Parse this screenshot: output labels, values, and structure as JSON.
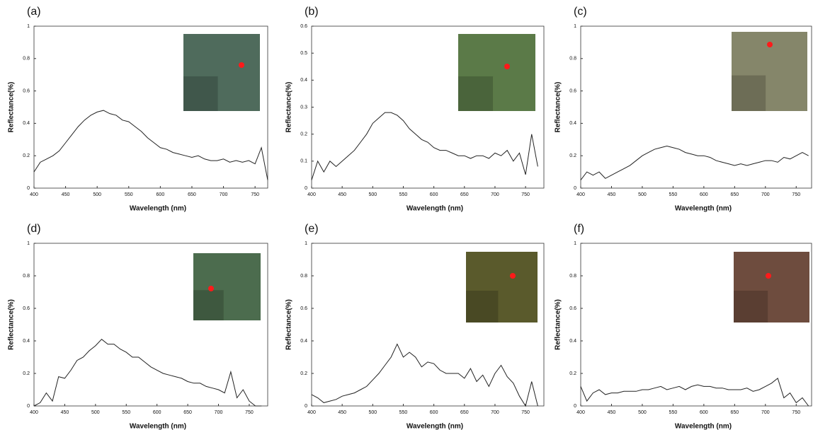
{
  "chart_data": [
    {
      "type": "line",
      "label": "(a)",
      "x_label": "Wavelength (nm)",
      "y_label": "Reflectance(%)",
      "x": [
        400,
        410,
        420,
        430,
        440,
        450,
        460,
        470,
        480,
        490,
        500,
        510,
        520,
        530,
        540,
        550,
        560,
        570,
        580,
        590,
        600,
        610,
        620,
        630,
        640,
        650,
        660,
        670,
        680,
        690,
        700,
        710,
        720,
        730,
        740,
        750,
        760,
        770
      ],
      "series": [
        {
          "color": "#222222",
          "values": [
            0.1,
            0.16,
            0.18,
            0.2,
            0.23,
            0.28,
            0.33,
            0.38,
            0.42,
            0.45,
            0.47,
            0.48,
            0.46,
            0.45,
            0.42,
            0.41,
            0.38,
            0.35,
            0.31,
            0.28,
            0.25,
            0.24,
            0.22,
            0.21,
            0.2,
            0.19,
            0.2,
            0.18,
            0.17,
            0.17,
            0.18,
            0.16,
            0.17,
            0.16,
            0.17,
            0.15,
            0.25,
            0.05
          ]
        }
      ],
      "xlim": [
        400,
        770
      ],
      "ylim": [
        0,
        1
      ],
      "xticks": [
        400,
        450,
        500,
        550,
        600,
        650,
        700,
        750
      ],
      "yticks": [
        0,
        0.2,
        0.4,
        0.6,
        0.8,
        1
      ]
    },
    {
      "type": "line",
      "label": "(b)",
      "x_label": "Wavelength (nm)",
      "y_label": "Reflectance(%)",
      "x": [
        400,
        410,
        420,
        430,
        440,
        450,
        460,
        470,
        480,
        490,
        500,
        510,
        520,
        530,
        540,
        550,
        560,
        570,
        580,
        590,
        600,
        610,
        620,
        630,
        640,
        650,
        660,
        670,
        680,
        690,
        700,
        710,
        720,
        730,
        740,
        750,
        760,
        770
      ],
      "series": [
        {
          "color": "#222222",
          "values": [
            0.03,
            0.1,
            0.06,
            0.1,
            0.08,
            0.1,
            0.12,
            0.14,
            0.17,
            0.2,
            0.24,
            0.26,
            0.28,
            0.28,
            0.27,
            0.25,
            0.22,
            0.2,
            0.18,
            0.17,
            0.15,
            0.14,
            0.14,
            0.13,
            0.12,
            0.12,
            0.11,
            0.12,
            0.12,
            0.11,
            0.13,
            0.12,
            0.14,
            0.1,
            0.13,
            0.05,
            0.2,
            0.08
          ]
        }
      ],
      "xlim": [
        400,
        780
      ],
      "ylim": [
        0,
        0.6
      ],
      "xticks": [
        400,
        450,
        500,
        550,
        600,
        650,
        700,
        750
      ],
      "yticks": [
        0,
        0.1,
        0.2,
        0.3,
        0.4,
        0.5,
        0.6
      ]
    },
    {
      "type": "line",
      "label": "(c)",
      "x_label": "Wavelength (nm)",
      "y_label": "Reflectance(%)",
      "x": [
        400,
        410,
        420,
        430,
        440,
        450,
        460,
        470,
        480,
        490,
        500,
        510,
        520,
        530,
        540,
        550,
        560,
        570,
        580,
        590,
        600,
        610,
        620,
        630,
        640,
        650,
        660,
        670,
        680,
        690,
        700,
        710,
        720,
        730,
        740,
        750,
        760,
        770
      ],
      "series": [
        {
          "color": "#222222",
          "values": [
            0.05,
            0.1,
            0.08,
            0.1,
            0.06,
            0.08,
            0.1,
            0.12,
            0.14,
            0.17,
            0.2,
            0.22,
            0.24,
            0.25,
            0.26,
            0.25,
            0.24,
            0.22,
            0.21,
            0.2,
            0.2,
            0.19,
            0.17,
            0.16,
            0.15,
            0.14,
            0.15,
            0.14,
            0.15,
            0.16,
            0.17,
            0.17,
            0.16,
            0.19,
            0.18,
            0.2,
            0.22,
            0.2
          ]
        }
      ],
      "xlim": [
        400,
        775
      ],
      "ylim": [
        0,
        1
      ],
      "xticks": [
        400,
        450,
        500,
        550,
        600,
        650,
        700,
        750
      ],
      "yticks": [
        0,
        0.2,
        0.4,
        0.6,
        0.8,
        1
      ]
    },
    {
      "type": "line",
      "label": "(d)",
      "x_label": "Wavelength (nm)",
      "y_label": "Reflectance(%)",
      "x": [
        400,
        410,
        420,
        430,
        440,
        450,
        460,
        470,
        480,
        490,
        500,
        510,
        520,
        530,
        540,
        550,
        560,
        570,
        580,
        590,
        600,
        610,
        620,
        630,
        640,
        650,
        660,
        670,
        680,
        690,
        700,
        710,
        720,
        730,
        740,
        750,
        760,
        770
      ],
      "series": [
        {
          "color": "#222222",
          "values": [
            0,
            0.02,
            0.08,
            0.03,
            0.18,
            0.17,
            0.22,
            0.28,
            0.3,
            0.34,
            0.37,
            0.41,
            0.38,
            0.38,
            0.35,
            0.33,
            0.3,
            0.3,
            0.27,
            0.24,
            0.22,
            0.2,
            0.19,
            0.18,
            0.17,
            0.15,
            0.14,
            0.14,
            0.12,
            0.11,
            0.1,
            0.08,
            0.21,
            0.05,
            0.1,
            0.03,
            0,
            0
          ]
        }
      ],
      "xlim": [
        400,
        780
      ],
      "ylim": [
        0,
        1
      ],
      "xticks": [
        400,
        450,
        500,
        550,
        600,
        650,
        700,
        750
      ],
      "yticks": [
        0,
        0.2,
        0.4,
        0.6,
        0.8,
        1
      ]
    },
    {
      "type": "line",
      "label": "(e)",
      "x_label": "Wavelength (nm)",
      "y_label": "Reflectance(%)",
      "x": [
        400,
        410,
        420,
        430,
        440,
        450,
        460,
        470,
        480,
        490,
        500,
        510,
        520,
        530,
        540,
        550,
        560,
        570,
        580,
        590,
        600,
        610,
        620,
        630,
        640,
        650,
        660,
        670,
        680,
        690,
        700,
        710,
        720,
        730,
        740,
        750,
        760,
        770
      ],
      "series": [
        {
          "color": "#222222",
          "values": [
            0.07,
            0.05,
            0.02,
            0.03,
            0.04,
            0.06,
            0.07,
            0.08,
            0.1,
            0.12,
            0.16,
            0.2,
            0.25,
            0.3,
            0.38,
            0.3,
            0.33,
            0.3,
            0.24,
            0.27,
            0.26,
            0.22,
            0.2,
            0.2,
            0.2,
            0.17,
            0.23,
            0.15,
            0.19,
            0.12,
            0.2,
            0.25,
            0.18,
            0.14,
            0.06,
            0,
            0.15,
            0
          ]
        }
      ],
      "xlim": [
        400,
        780
      ],
      "ylim": [
        0,
        1
      ],
      "xticks": [
        400,
        450,
        500,
        550,
        600,
        650,
        700,
        750
      ],
      "yticks": [
        0,
        0.2,
        0.4,
        0.6,
        0.8,
        1
      ]
    },
    {
      "type": "line",
      "label": "(f)",
      "x_label": "Wavelength (nm)",
      "y_label": "Reflectance(%)",
      "x": [
        400,
        410,
        420,
        430,
        440,
        450,
        460,
        470,
        480,
        490,
        500,
        510,
        520,
        530,
        540,
        550,
        560,
        570,
        580,
        590,
        600,
        610,
        620,
        630,
        640,
        650,
        660,
        670,
        680,
        690,
        700,
        710,
        720,
        730,
        740,
        750,
        760,
        770
      ],
      "series": [
        {
          "color": "#222222",
          "values": [
            0.12,
            0.03,
            0.08,
            0.1,
            0.07,
            0.08,
            0.08,
            0.09,
            0.09,
            0.09,
            0.1,
            0.1,
            0.11,
            0.12,
            0.1,
            0.11,
            0.12,
            0.1,
            0.12,
            0.13,
            0.12,
            0.12,
            0.11,
            0.11,
            0.1,
            0.1,
            0.1,
            0.11,
            0.09,
            0.1,
            0.12,
            0.14,
            0.17,
            0.05,
            0.08,
            0.02,
            0.05,
            0
          ]
        }
      ],
      "xlim": [
        400,
        775
      ],
      "ylim": [
        0,
        1
      ],
      "xticks": [
        400,
        450,
        500,
        550,
        600,
        650,
        700,
        750
      ],
      "yticks": [
        0,
        0.2,
        0.4,
        0.6,
        0.8,
        1
      ]
    }
  ]
}
